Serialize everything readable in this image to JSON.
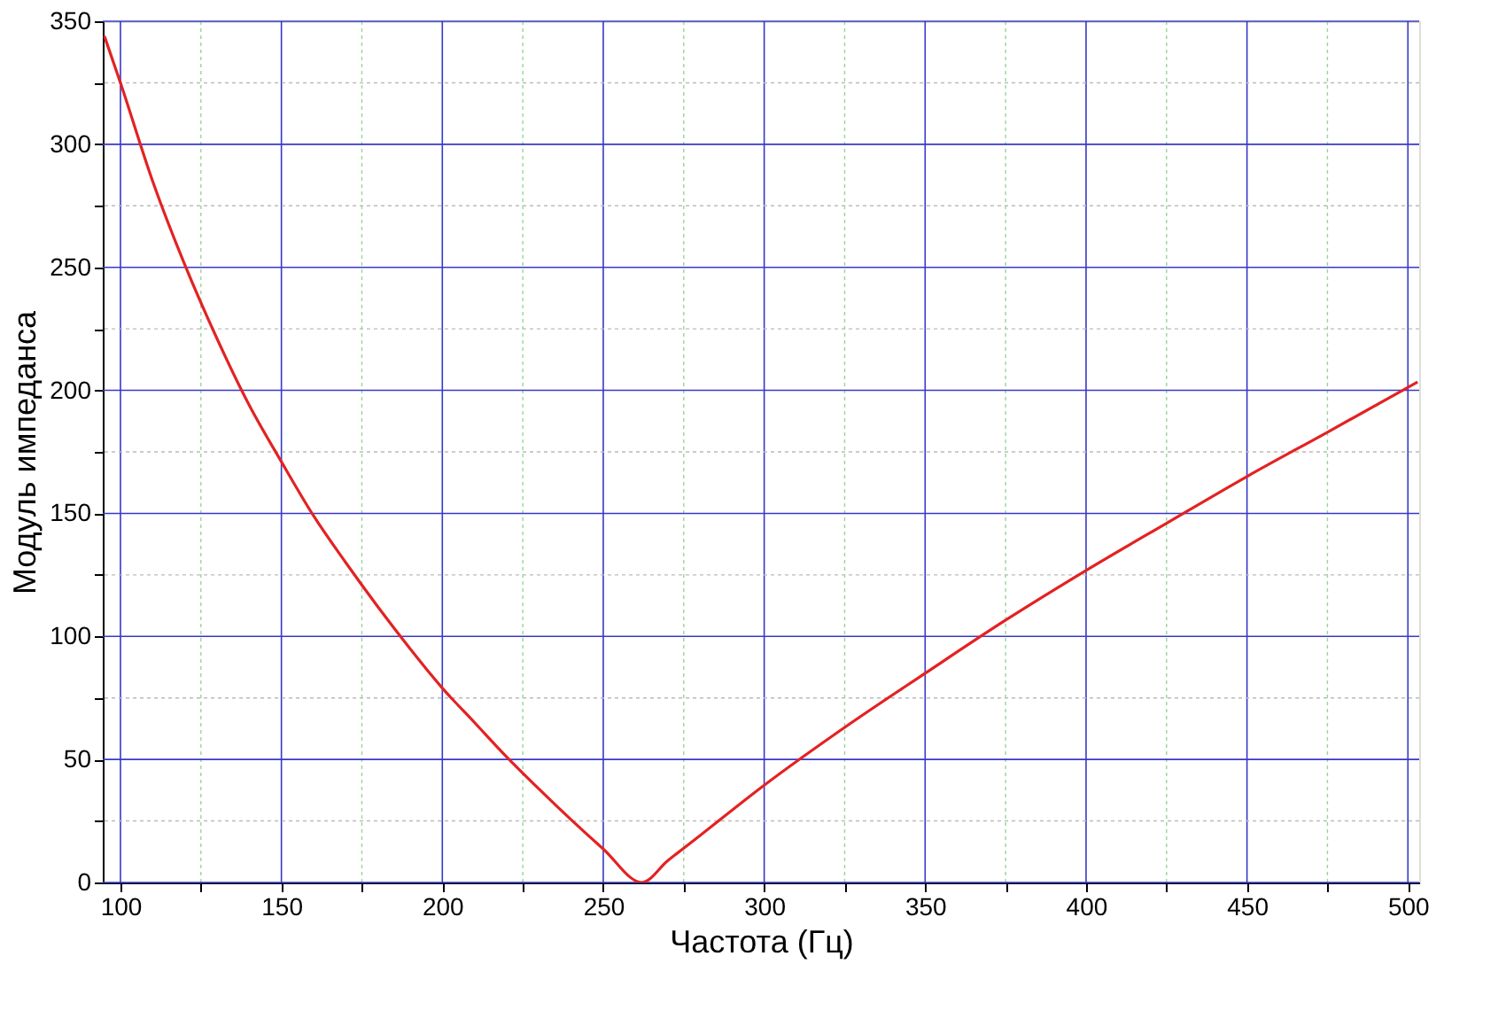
{
  "chart_data": {
    "type": "line",
    "xlabel": "Частота (Гц)",
    "ylabel": "Модуль импеданса",
    "x": [
      95,
      100,
      110,
      120,
      130,
      140,
      150,
      160,
      170,
      180,
      190,
      200,
      210,
      220,
      230,
      240,
      250,
      262,
      270,
      280,
      300,
      325,
      350,
      375,
      400,
      425,
      450,
      475,
      503
    ],
    "series": [
      {
        "color": "#e32222",
        "values": [
          344,
          325,
          285,
          251,
          221,
          194,
          171,
          149,
          130,
          112,
          95,
          79,
          65,
          51,
          38,
          25.5,
          13.6,
          0,
          8.8,
          19,
          39.5,
          63,
          85,
          106.6,
          126.8,
          146,
          165,
          183,
          203.4
        ]
      }
    ],
    "xlim": [
      94.5,
      503.5
    ],
    "ylim": [
      0,
      350
    ],
    "xticks": [
      100,
      {
        "value": 125,
        "label": null
      },
      150,
      {
        "value": 175,
        "label": null
      },
      200,
      {
        "value": 225,
        "label": null
      },
      250,
      {
        "value": 275,
        "label": null
      },
      300,
      {
        "value": 325,
        "label": null
      },
      350,
      {
        "value": 375,
        "label": null
      },
      400,
      {
        "value": 425,
        "label": null
      },
      450,
      {
        "value": 475,
        "label": null
      },
      500
    ],
    "yticks": [
      0,
      {
        "value": 25,
        "label": null
      },
      50,
      {
        "value": 75,
        "label": null
      },
      100,
      {
        "value": 125,
        "label": null
      },
      150,
      {
        "value": 175,
        "label": null
      },
      200,
      {
        "value": 225,
        "label": null
      },
      250,
      {
        "value": 275,
        "label": null
      },
      300,
      {
        "value": 325,
        "label": null
      },
      350
    ],
    "grid": true,
    "marker": "none",
    "line_style": "solid"
  }
}
